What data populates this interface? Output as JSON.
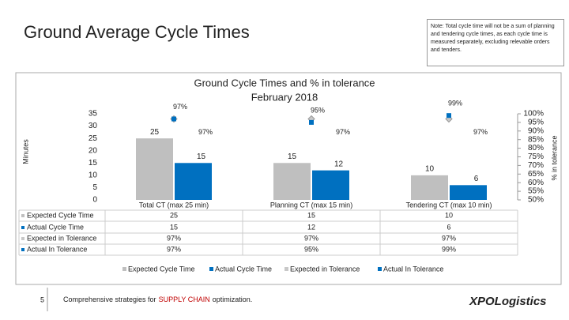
{
  "slide": {
    "title": "Ground Average Cycle Times",
    "note": "Note: Total cycle time will not be a sum of planning and tendering cycle times, as each cycle time is measured separately, excluding relevable orders and tenders.",
    "page_number": "5",
    "footer": {
      "before": "Comprehensive strategies for",
      "highlight": "SUPPLY CHAIN",
      "after": "optimization."
    },
    "logo": "XPOLogistics"
  },
  "chart_data": {
    "type": "bar",
    "title": "Ground Cycle Times and % in tolerance",
    "subtitle": "February 2018",
    "y_label": "Minutes",
    "y2_label": "% in tolerance",
    "categories": [
      "Total CT (max 25 min)",
      "Planning CT (max 15 min)",
      "Tendering CT (max 10 min)"
    ],
    "ylim": [
      0,
      35
    ],
    "yticks": [
      0,
      5,
      10,
      15,
      20,
      25,
      30,
      35
    ],
    "y2lim": [
      50,
      100
    ],
    "y2ticks": [
      {
        "value": 50,
        "label": "50%"
      },
      {
        "value": 55,
        "label": "55%"
      },
      {
        "value": 60,
        "label": "60%"
      },
      {
        "value": 65,
        "label": "65%"
      },
      {
        "value": 70,
        "label": "70%"
      },
      {
        "value": 75,
        "label": "75%"
      },
      {
        "value": 80,
        "label": "80%"
      },
      {
        "value": 85,
        "label": "85%"
      },
      {
        "value": 90,
        "label": "90%"
      },
      {
        "value": 95,
        "label": "95%"
      },
      {
        "value": 100,
        "label": "100%"
      }
    ],
    "series": [
      {
        "name": "Expected Cycle Time",
        "color": "#bfbfbf",
        "values": [
          25,
          15,
          10
        ]
      },
      {
        "name": "Actual Cycle Time",
        "color": "#0070c0",
        "values": [
          15,
          12,
          6
        ]
      },
      {
        "name": "Expected in Tolerance",
        "color": "#c8c8c8",
        "axis": "y2",
        "marker": "diamond",
        "values": [
          97,
          97,
          97
        ],
        "value_labels": [
          "97%",
          "97%",
          "97%"
        ]
      },
      {
        "name": "Actual In Tolerance",
        "color": "#0070c0",
        "axis": "y2",
        "marker": "square",
        "values": [
          97,
          95,
          99
        ],
        "value_labels": [
          "97%",
          "95%",
          "99%"
        ]
      }
    ],
    "legend": "bottom"
  }
}
